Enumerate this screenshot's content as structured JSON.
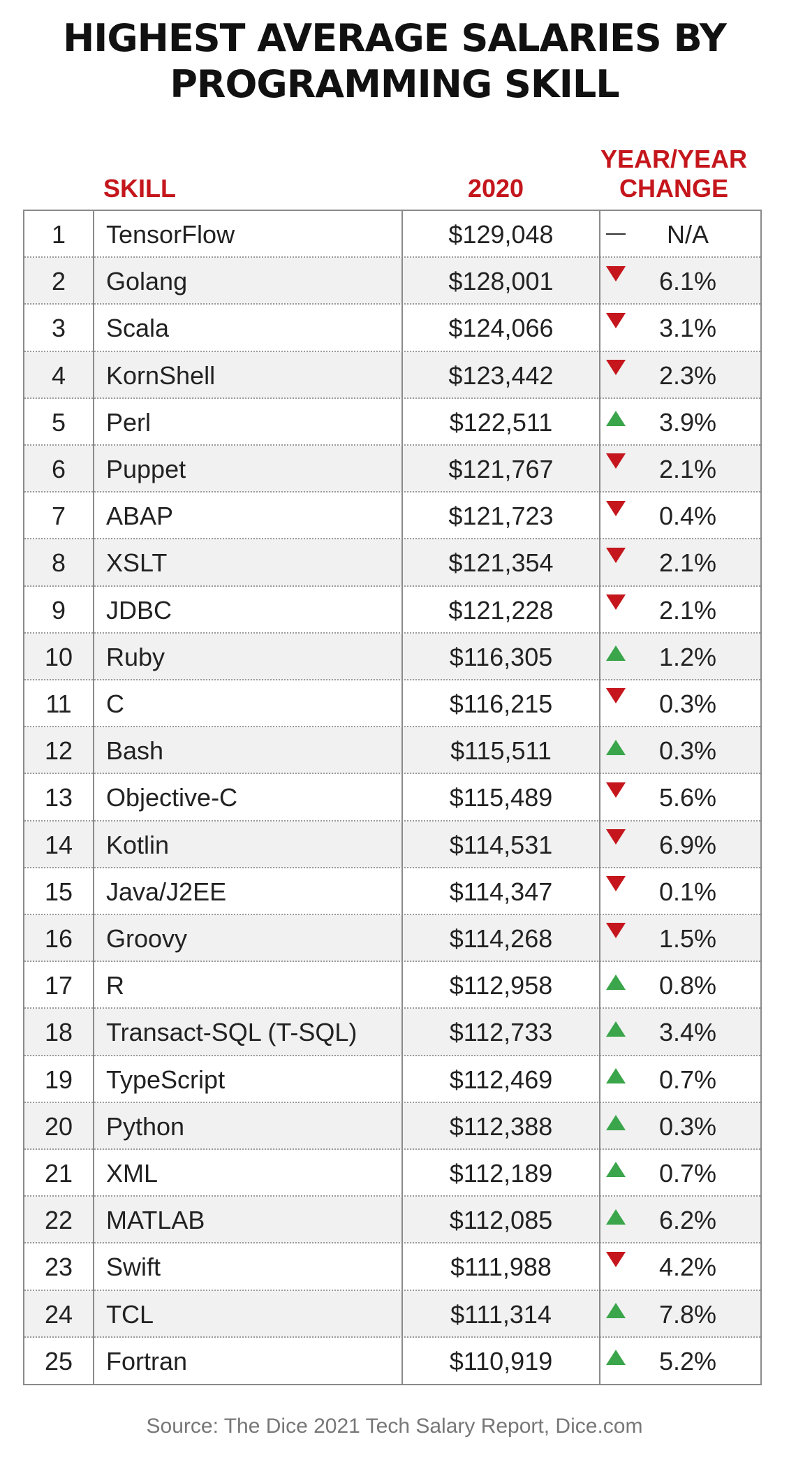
{
  "title_line1": "HIGHEST AVERAGE SALARIES BY",
  "title_line2": "PROGRAMMING SKILL",
  "source": "Source: The Dice 2021 Tech Salary Report, Dice.com",
  "colors": {
    "header_red": "#c4161c",
    "up_green": "#3aa54a",
    "down_red": "#c4161c"
  },
  "chart_data": {
    "type": "table",
    "title": "HIGHEST AVERAGE SALARIES BY PROGRAMMING SKILL",
    "columns": [
      "",
      "SKILL",
      "2020",
      "YEAR/YEAR CHANGE"
    ],
    "header_change_line1": "YEAR/YEAR",
    "header_change_line2": "CHANGE",
    "rows": [
      {
        "rank": "1",
        "skill": "TensorFlow",
        "salary": "$129,048",
        "direction": "none",
        "change": "N/A"
      },
      {
        "rank": "2",
        "skill": "Golang",
        "salary": "$128,001",
        "direction": "down",
        "change": "6.1%"
      },
      {
        "rank": "3",
        "skill": "Scala",
        "salary": "$124,066",
        "direction": "down",
        "change": "3.1%"
      },
      {
        "rank": "4",
        "skill": "KornShell",
        "salary": "$123,442",
        "direction": "down",
        "change": "2.3%"
      },
      {
        "rank": "5",
        "skill": "Perl",
        "salary": "$122,511",
        "direction": "up",
        "change": "3.9%"
      },
      {
        "rank": "6",
        "skill": "Puppet",
        "salary": "$121,767",
        "direction": "down",
        "change": "2.1%"
      },
      {
        "rank": "7",
        "skill": "ABAP",
        "salary": "$121,723",
        "direction": "down",
        "change": "0.4%"
      },
      {
        "rank": "8",
        "skill": "XSLT",
        "salary": "$121,354",
        "direction": "down",
        "change": "2.1%"
      },
      {
        "rank": "9",
        "skill": "JDBC",
        "salary": "$121,228",
        "direction": "down",
        "change": "2.1%"
      },
      {
        "rank": "10",
        "skill": "Ruby",
        "salary": "$116,305",
        "direction": "up",
        "change": "1.2%"
      },
      {
        "rank": "11",
        "skill": "C",
        "salary": "$116,215",
        "direction": "down",
        "change": "0.3%"
      },
      {
        "rank": "12",
        "skill": "Bash",
        "salary": "$115,511",
        "direction": "up",
        "change": "0.3%"
      },
      {
        "rank": "13",
        "skill": "Objective-C",
        "salary": "$115,489",
        "direction": "down",
        "change": "5.6%"
      },
      {
        "rank": "14",
        "skill": "Kotlin",
        "salary": "$114,531",
        "direction": "down",
        "change": "6.9%"
      },
      {
        "rank": "15",
        "skill": "Java/J2EE",
        "salary": "$114,347",
        "direction": "down",
        "change": "0.1%"
      },
      {
        "rank": "16",
        "skill": "Groovy",
        "salary": "$114,268",
        "direction": "down",
        "change": "1.5%"
      },
      {
        "rank": "17",
        "skill": "R",
        "salary": "$112,958",
        "direction": "up",
        "change": "0.8%"
      },
      {
        "rank": "18",
        "skill": "Transact-SQL (T-SQL)",
        "salary": "$112,733",
        "direction": "up",
        "change": "3.4%"
      },
      {
        "rank": "19",
        "skill": "TypeScript",
        "salary": "$112,469",
        "direction": "up",
        "change": "0.7%"
      },
      {
        "rank": "20",
        "skill": "Python",
        "salary": "$112,388",
        "direction": "up",
        "change": "0.3%"
      },
      {
        "rank": "21",
        "skill": "XML",
        "salary": "$112,189",
        "direction": "up",
        "change": "0.7%"
      },
      {
        "rank": "22",
        "skill": "MATLAB",
        "salary": "$112,085",
        "direction": "up",
        "change": "6.2%"
      },
      {
        "rank": "23",
        "skill": "Swift",
        "salary": "$111,988",
        "direction": "down",
        "change": "4.2%"
      },
      {
        "rank": "24",
        "skill": "TCL",
        "salary": "$111,314",
        "direction": "up",
        "change": "7.8%"
      },
      {
        "rank": "25",
        "skill": "Fortran",
        "salary": "$110,919",
        "direction": "up",
        "change": "5.2%"
      }
    ]
  }
}
